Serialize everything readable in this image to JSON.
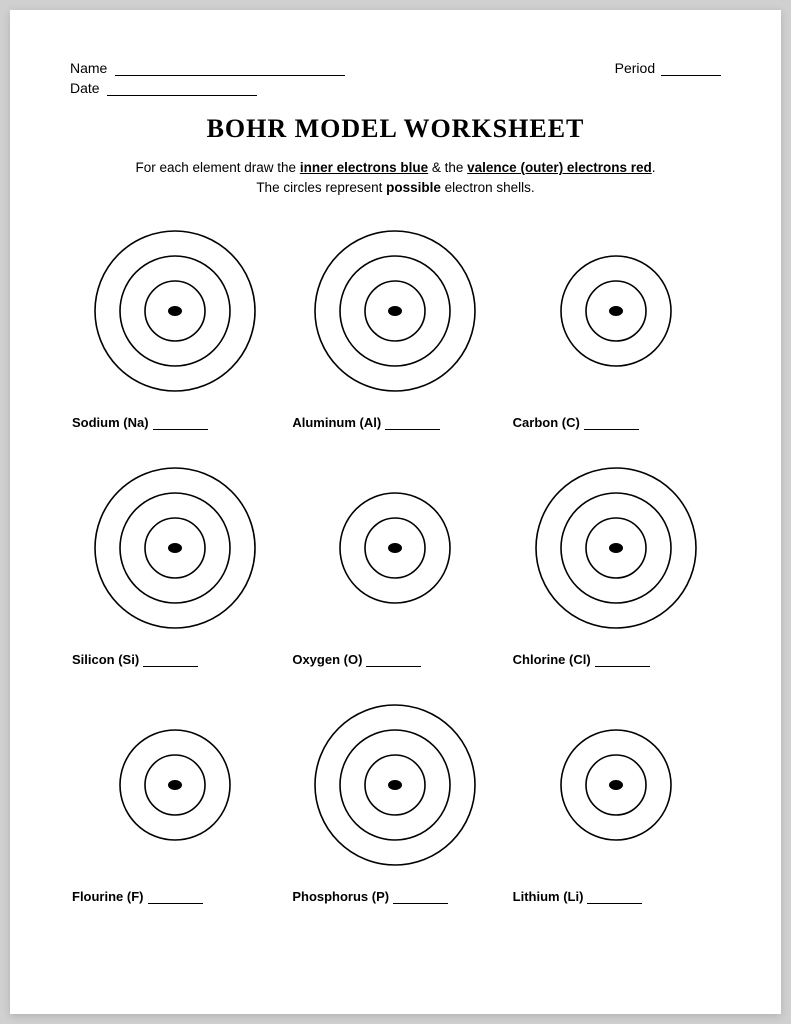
{
  "header": {
    "name_label": "Name",
    "period_label": "Period",
    "date_label": "Date"
  },
  "title": "BOHR MODEL WORKSHEET",
  "instructions": {
    "line1_pre": "For each element draw the ",
    "inner_phrase": "inner electrons blue",
    "amp": " & the ",
    "valence_phrase": "valence (outer) electrons red",
    "line1_post": ".",
    "line2_pre": "The circles represent ",
    "possible": "possible",
    "line2_post": " electron shells."
  },
  "diagram_style": {
    "stroke": "#000000",
    "stroke_width": 1.6,
    "nucleus_rx": 7,
    "nucleus_ry": 5,
    "shell_radii_small": [
      30,
      55
    ],
    "shell_radii_medium": [
      30,
      55,
      80
    ],
    "outer_box": 180
  },
  "elements": [
    {
      "label": "Sodium (Na)",
      "shells": 3
    },
    {
      "label": "Aluminum (Al)",
      "shells": 3
    },
    {
      "label": "Carbon (C)",
      "shells": 2
    },
    {
      "label": "Silicon (Si)",
      "shells": 3
    },
    {
      "label": "Oxygen (O)",
      "shells": 2
    },
    {
      "label": "Chlorine (Cl)",
      "shells": 3
    },
    {
      "label": "Flourine (F)",
      "shells": 2
    },
    {
      "label": "Phosphorus (P)",
      "shells": 3
    },
    {
      "label": "Lithium (Li)",
      "shells": 2
    }
  ]
}
